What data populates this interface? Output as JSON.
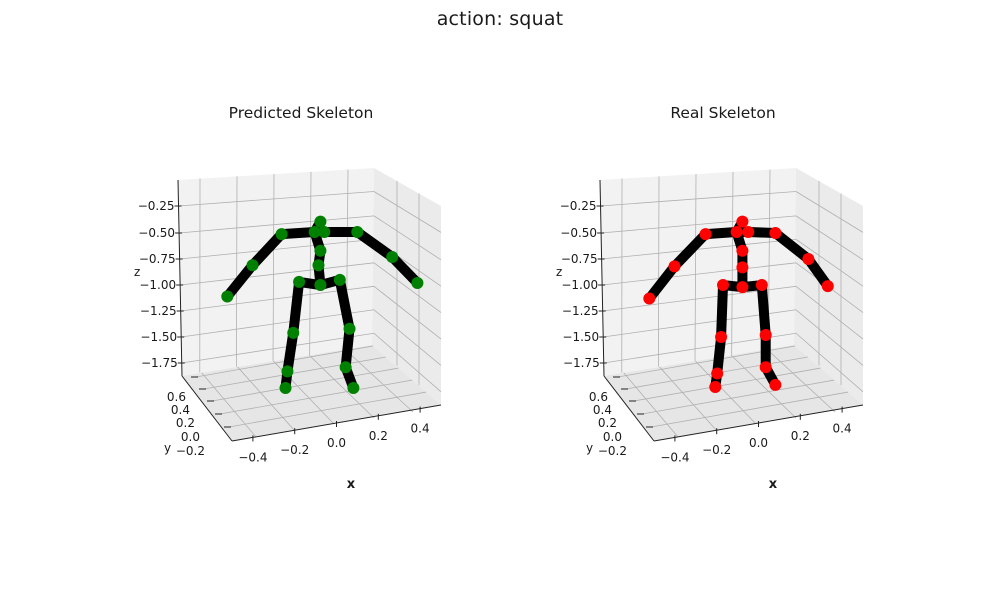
{
  "figure": {
    "suptitle": "action: squat"
  },
  "chart_data": [
    {
      "type": "scatter",
      "title": "Predicted Skeleton",
      "xlabel": "x",
      "ylabel": "y",
      "zlabel": "z",
      "x_ticks": [
        "−0.4",
        "−0.2",
        "0.0",
        "0.2",
        "0.4"
      ],
      "y_ticks": [
        "−0.2",
        "0.0",
        "0.2",
        "0.4",
        "0.6"
      ],
      "z_ticks": [
        "−0.25",
        "−0.50",
        "−0.75",
        "−1.00",
        "−1.25",
        "−1.50",
        "−1.75"
      ],
      "grid": true,
      "colors": {
        "joint": "#008000",
        "bone": "#000000"
      },
      "joints": [
        {
          "name": "head",
          "x": -0.07,
          "z": -0.4
        },
        {
          "name": "neck",
          "x": -0.1,
          "z": -0.5
        },
        {
          "name": "neck-left",
          "x": -0.05,
          "z": -0.5
        },
        {
          "name": "left-shoulder",
          "x": 0.12,
          "z": -0.5
        },
        {
          "name": "left-elbow",
          "x": 0.3,
          "z": -0.74
        },
        {
          "name": "left-wrist",
          "x": 0.43,
          "z": -0.99
        },
        {
          "name": "right-shoulder",
          "x": -0.27,
          "z": -0.52
        },
        {
          "name": "right-elbow",
          "x": -0.42,
          "z": -0.82
        },
        {
          "name": "right-wrist",
          "x": -0.55,
          "z": -1.12
        },
        {
          "name": "spine",
          "x": -0.07,
          "z": -0.68
        },
        {
          "name": "mid-spine",
          "x": -0.08,
          "z": -0.82
        },
        {
          "name": "hip-center",
          "x": -0.07,
          "z": -1.01
        },
        {
          "name": "left-hip",
          "x": 0.03,
          "z": -0.96
        },
        {
          "name": "right-hip",
          "x": -0.18,
          "z": -0.98
        },
        {
          "name": "left-knee",
          "x": 0.08,
          "z": -1.43
        },
        {
          "name": "left-ankle",
          "x": 0.06,
          "z": -1.8
        },
        {
          "name": "left-foot",
          "x": 0.1,
          "z": -2.0
        },
        {
          "name": "right-knee",
          "x": -0.21,
          "z": -1.47
        },
        {
          "name": "right-ankle",
          "x": -0.24,
          "z": -1.84
        },
        {
          "name": "right-foot",
          "x": -0.25,
          "z": -2.0
        }
      ],
      "bones": [
        [
          0,
          1
        ],
        [
          1,
          2
        ],
        [
          2,
          3
        ],
        [
          3,
          4
        ],
        [
          4,
          5
        ],
        [
          1,
          6
        ],
        [
          6,
          7
        ],
        [
          7,
          8
        ],
        [
          1,
          9
        ],
        [
          9,
          10
        ],
        [
          10,
          11
        ],
        [
          11,
          12
        ],
        [
          12,
          14
        ],
        [
          14,
          15
        ],
        [
          15,
          16
        ],
        [
          11,
          13
        ],
        [
          13,
          17
        ],
        [
          17,
          18
        ],
        [
          18,
          19
        ]
      ]
    },
    {
      "type": "scatter",
      "title": "Real Skeleton",
      "xlabel": "x",
      "ylabel": "y",
      "zlabel": "z",
      "x_ticks": [
        "−0.4",
        "−0.2",
        "0.0",
        "0.2",
        "0.4"
      ],
      "y_ticks": [
        "−0.2",
        "0.0",
        "0.2",
        "0.4",
        "0.6"
      ],
      "z_ticks": [
        "−0.25",
        "−0.50",
        "−0.75",
        "−1.00",
        "−1.25",
        "−1.50",
        "−1.75"
      ],
      "grid": true,
      "colors": {
        "joint": "#ff0000",
        "bone": "#000000"
      },
      "joints": [
        {
          "name": "head",
          "x": -0.07,
          "z": -0.4
        },
        {
          "name": "neck",
          "x": -0.1,
          "z": -0.5
        },
        {
          "name": "neck-left",
          "x": -0.04,
          "z": -0.5
        },
        {
          "name": "left-shoulder",
          "x": 0.1,
          "z": -0.51
        },
        {
          "name": "left-elbow",
          "x": 0.27,
          "z": -0.76
        },
        {
          "name": "left-wrist",
          "x": 0.37,
          "z": -1.02
        },
        {
          "name": "right-shoulder",
          "x": -0.26,
          "z": -0.52
        },
        {
          "name": "right-elbow",
          "x": -0.42,
          "z": -0.83
        },
        {
          "name": "right-wrist",
          "x": -0.55,
          "z": -1.14
        },
        {
          "name": "spine",
          "x": -0.07,
          "z": -0.68
        },
        {
          "name": "mid-spine",
          "x": -0.07,
          "z": -0.84
        },
        {
          "name": "hip-center",
          "x": -0.07,
          "z": -1.03
        },
        {
          "name": "left-hip",
          "x": 0.03,
          "z": -1.01
        },
        {
          "name": "right-hip",
          "x": -0.17,
          "z": -1.01
        },
        {
          "name": "left-knee",
          "x": 0.05,
          "z": -1.49
        },
        {
          "name": "left-ankle",
          "x": 0.05,
          "z": -1.8
        },
        {
          "name": "left-foot",
          "x": 0.1,
          "z": -1.97
        },
        {
          "name": "right-knee",
          "x": -0.18,
          "z": -1.51
        },
        {
          "name": "right-ankle",
          "x": -0.2,
          "z": -1.86
        },
        {
          "name": "right-foot",
          "x": -0.21,
          "z": -1.99
        }
      ],
      "bones": [
        [
          0,
          1
        ],
        [
          1,
          2
        ],
        [
          2,
          3
        ],
        [
          3,
          4
        ],
        [
          4,
          5
        ],
        [
          1,
          6
        ],
        [
          6,
          7
        ],
        [
          7,
          8
        ],
        [
          1,
          9
        ],
        [
          9,
          10
        ],
        [
          10,
          11
        ],
        [
          11,
          12
        ],
        [
          12,
          14
        ],
        [
          14,
          15
        ],
        [
          15,
          16
        ],
        [
          11,
          13
        ],
        [
          13,
          17
        ],
        [
          17,
          18
        ],
        [
          18,
          19
        ]
      ]
    }
  ]
}
